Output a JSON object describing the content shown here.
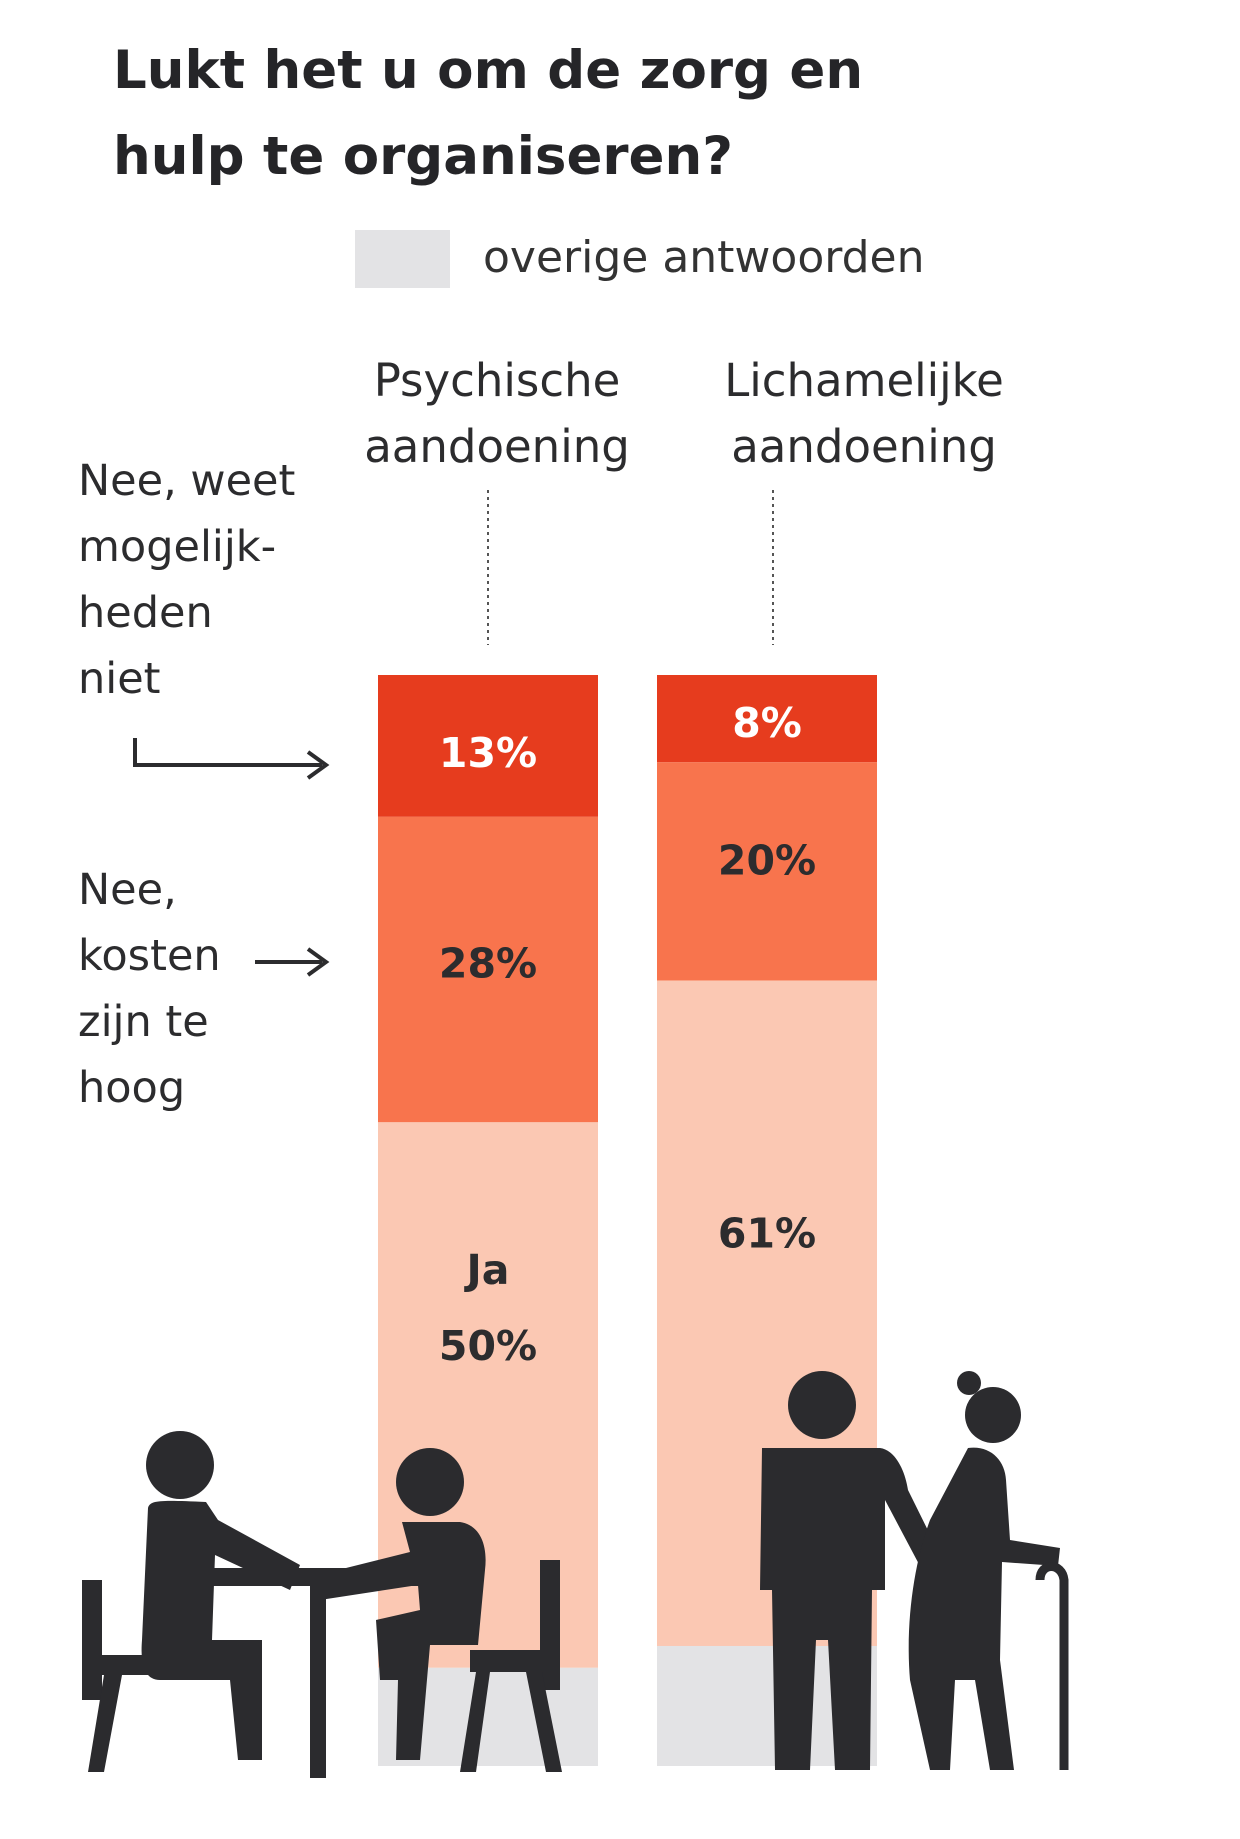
{
  "title": "Lukt het u om de zorg en hulp te organiseren?",
  "legend": {
    "label": "overige antwoorden",
    "color": "#e3e3e5"
  },
  "annotations": {
    "nee_weet": "Nee, weet\nmogelijk-\nheden\nniet",
    "nee_kosten": "Nee,\nkosten\nzijn te\nhoog"
  },
  "colors": {
    "nee_weet": "#e63c1e",
    "nee_kosten": "#f8744d",
    "ja": "#fbc8b3",
    "overige": "#e3e3e5"
  },
  "chart_data": {
    "type": "bar",
    "stacked": true,
    "categories": [
      "Psychische aandoening",
      "Lichamelijke aandoening"
    ],
    "category_lines": [
      [
        "Psychische",
        "aandoening"
      ],
      [
        "Lichamelijke",
        "aandoening"
      ]
    ],
    "series": [
      {
        "key": "nee_weet",
        "name": "Nee, weet mogelijkheden niet",
        "values": [
          13,
          8
        ],
        "labels": [
          "13%",
          "8%"
        ]
      },
      {
        "key": "nee_kosten",
        "name": "Nee, kosten zijn te hoog",
        "values": [
          28,
          20
        ],
        "labels": [
          "28%",
          "20%"
        ]
      },
      {
        "key": "ja",
        "name": "Ja",
        "values": [
          50,
          61
        ],
        "labels": [
          "Ja\n50%",
          "61%"
        ]
      },
      {
        "key": "overige",
        "name": "overige antwoorden",
        "values": [
          9,
          11
        ],
        "labels": [
          "",
          ""
        ]
      }
    ],
    "ylim": [
      0,
      100
    ]
  }
}
